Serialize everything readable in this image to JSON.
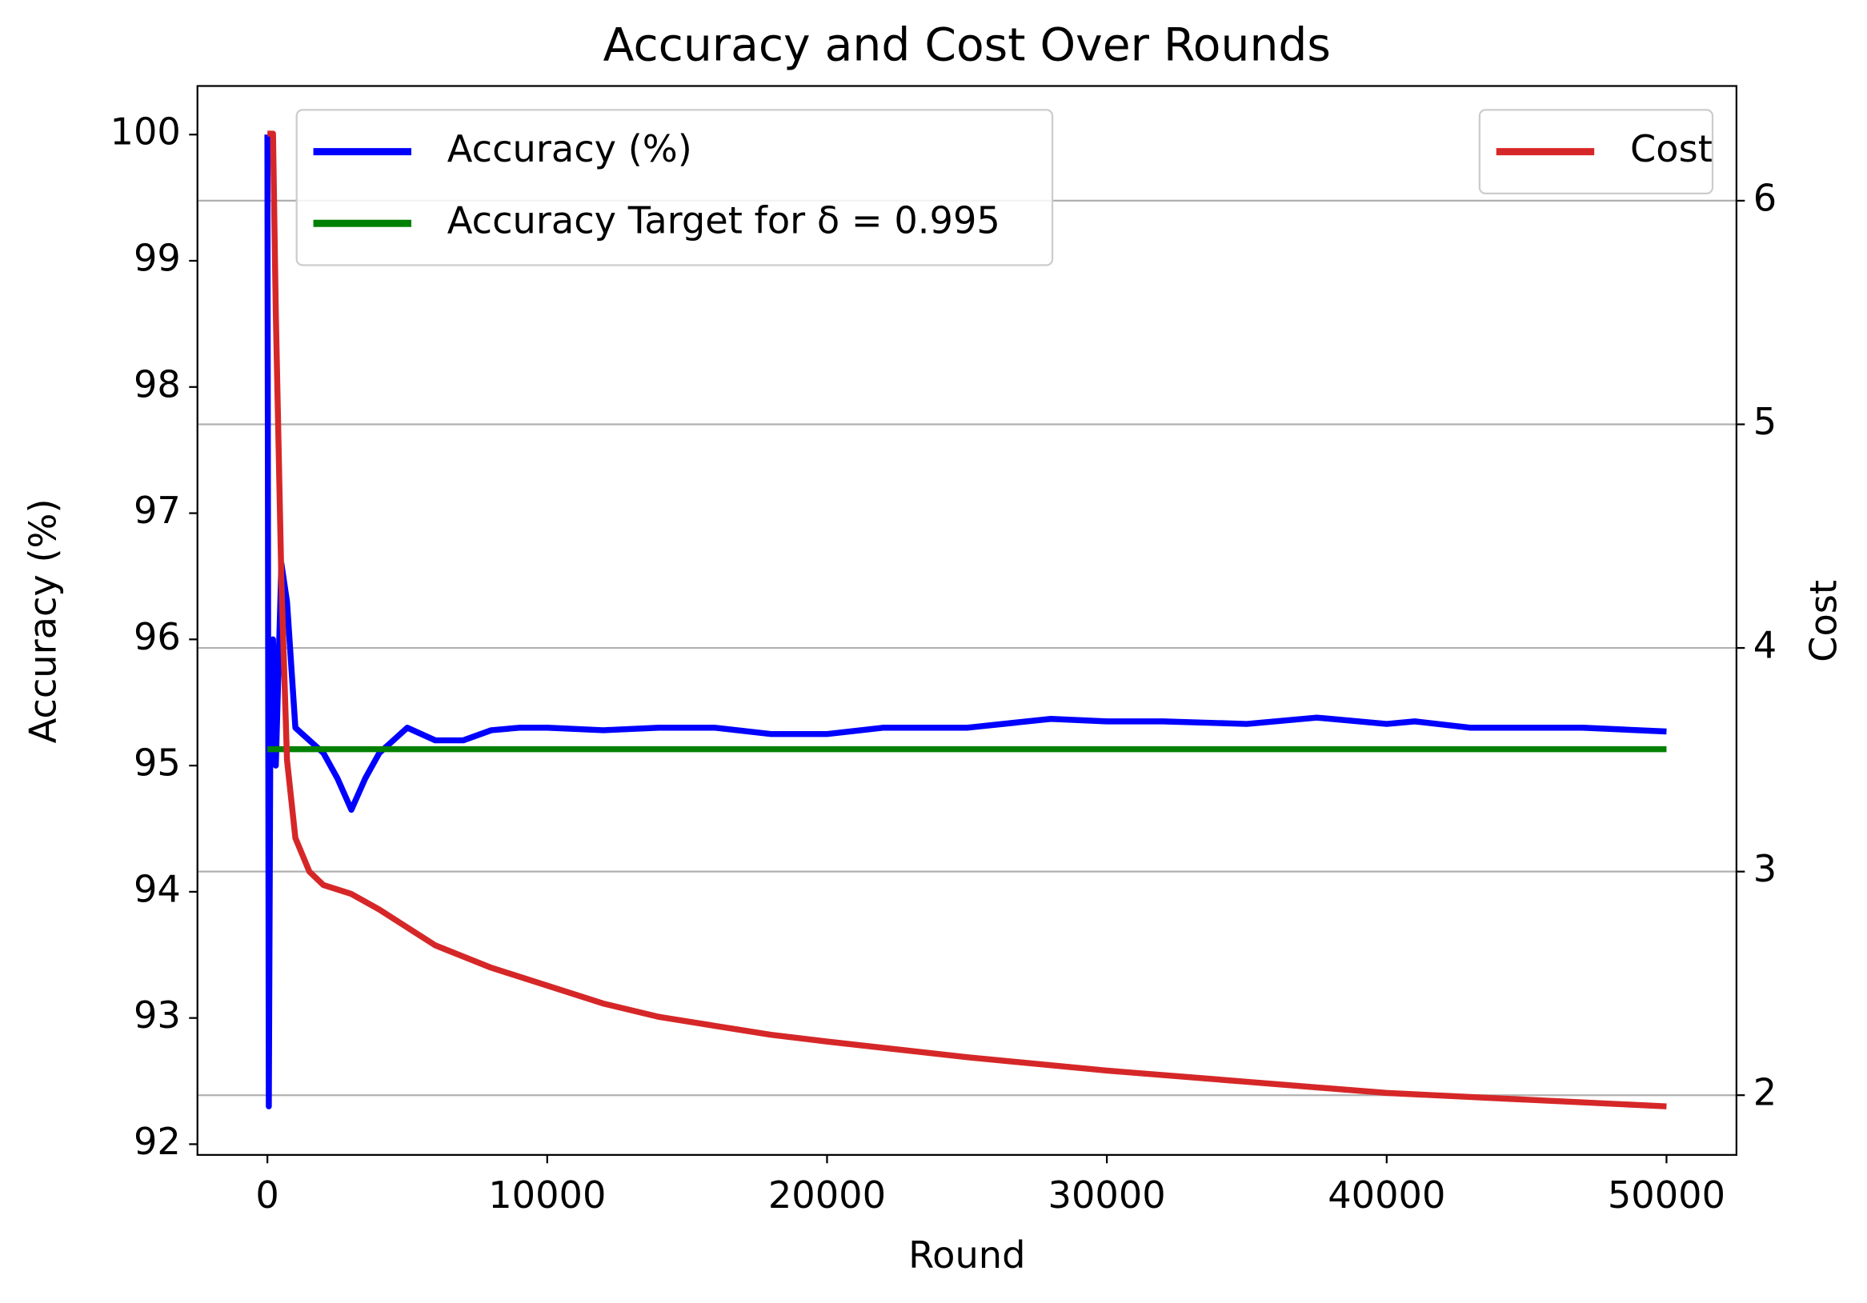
{
  "chart_data": {
    "type": "line",
    "title": "Accuracy and Cost Over Rounds",
    "xlabel": "Round",
    "ylabel": "Accuracy (%)",
    "y2label": "Cost",
    "xlim": [
      -2500,
      52500
    ],
    "xticks": [
      0,
      10000,
      20000,
      30000,
      40000,
      50000
    ],
    "ylim": [
      91.915,
      100.385
    ],
    "yticks": [
      92,
      93,
      94,
      95,
      96,
      97,
      98,
      99,
      100
    ],
    "y2lim": [
      1.733,
      6.513
    ],
    "y2ticks": [
      2,
      3,
      4,
      5,
      6
    ],
    "grid": "y2",
    "legend_loc": "upper left",
    "legend2_loc": "upper right",
    "series": [
      {
        "name": "Accuracy (%)",
        "color": "#0000ff",
        "axis": "y",
        "x": [
          0,
          50,
          100,
          200,
          300,
          500,
          700,
          1000,
          1500,
          2000,
          2500,
          3000,
          3500,
          4000,
          5000,
          6000,
          7000,
          8000,
          9000,
          10000,
          12000,
          14000,
          16000,
          18000,
          20000,
          22000,
          25000,
          28000,
          30000,
          32000,
          35000,
          37500,
          40000,
          41000,
          43000,
          45000,
          47000,
          50000
        ],
        "values": [
          100,
          92.3,
          95.0,
          96.0,
          95.0,
          96.6,
          96.3,
          95.3,
          95.2,
          95.1,
          94.9,
          94.65,
          94.9,
          95.1,
          95.3,
          95.2,
          95.2,
          95.28,
          95.3,
          95.3,
          95.28,
          95.3,
          95.3,
          95.25,
          95.25,
          95.3,
          95.3,
          95.37,
          95.35,
          95.35,
          95.33,
          95.38,
          95.33,
          95.35,
          95.3,
          95.3,
          95.3,
          95.27
        ]
      },
      {
        "name": "Accuracy Target for δ = 0.995",
        "color": "#008000",
        "axis": "y",
        "x": [
          0,
          50000
        ],
        "values": [
          95.13,
          95.13
        ]
      },
      {
        "name": "Cost",
        "color": "#d62728",
        "axis": "y2",
        "x": [
          0,
          200,
          300,
          500,
          700,
          1000,
          1500,
          2000,
          3000,
          4000,
          5000,
          6000,
          8000,
          10000,
          12000,
          14000,
          16000,
          18000,
          20000,
          25000,
          30000,
          35000,
          40000,
          45000,
          50000
        ],
        "values": [
          6.3,
          6.3,
          5.5,
          4.3,
          3.5,
          3.15,
          3.0,
          2.94,
          2.9,
          2.83,
          2.75,
          2.67,
          2.57,
          2.49,
          2.41,
          2.35,
          2.31,
          2.27,
          2.24,
          2.17,
          2.11,
          2.06,
          2.01,
          1.98,
          1.95
        ]
      }
    ]
  }
}
